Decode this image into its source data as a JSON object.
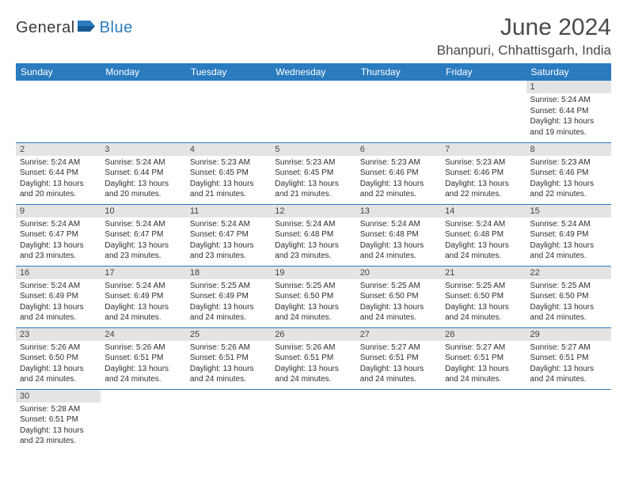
{
  "logo": {
    "part1": "General",
    "part2": "Blue"
  },
  "title": "June 2024",
  "location": "Bhanpuri, Chhattisgarh, India",
  "colors": {
    "brand_blue": "#2b7bbf",
    "header_gray": "#e4e4e4",
    "text": "#333333"
  },
  "weekdays": [
    "Sunday",
    "Monday",
    "Tuesday",
    "Wednesday",
    "Thursday",
    "Friday",
    "Saturday"
  ],
  "weeks": [
    [
      null,
      null,
      null,
      null,
      null,
      null,
      {
        "n": "1",
        "sr": "Sunrise: 5:24 AM",
        "ss": "Sunset: 6:44 PM",
        "d1": "Daylight: 13 hours",
        "d2": "and 19 minutes."
      }
    ],
    [
      {
        "n": "2",
        "sr": "Sunrise: 5:24 AM",
        "ss": "Sunset: 6:44 PM",
        "d1": "Daylight: 13 hours",
        "d2": "and 20 minutes."
      },
      {
        "n": "3",
        "sr": "Sunrise: 5:24 AM",
        "ss": "Sunset: 6:44 PM",
        "d1": "Daylight: 13 hours",
        "d2": "and 20 minutes."
      },
      {
        "n": "4",
        "sr": "Sunrise: 5:23 AM",
        "ss": "Sunset: 6:45 PM",
        "d1": "Daylight: 13 hours",
        "d2": "and 21 minutes."
      },
      {
        "n": "5",
        "sr": "Sunrise: 5:23 AM",
        "ss": "Sunset: 6:45 PM",
        "d1": "Daylight: 13 hours",
        "d2": "and 21 minutes."
      },
      {
        "n": "6",
        "sr": "Sunrise: 5:23 AM",
        "ss": "Sunset: 6:46 PM",
        "d1": "Daylight: 13 hours",
        "d2": "and 22 minutes."
      },
      {
        "n": "7",
        "sr": "Sunrise: 5:23 AM",
        "ss": "Sunset: 6:46 PM",
        "d1": "Daylight: 13 hours",
        "d2": "and 22 minutes."
      },
      {
        "n": "8",
        "sr": "Sunrise: 5:23 AM",
        "ss": "Sunset: 6:46 PM",
        "d1": "Daylight: 13 hours",
        "d2": "and 22 minutes."
      }
    ],
    [
      {
        "n": "9",
        "sr": "Sunrise: 5:24 AM",
        "ss": "Sunset: 6:47 PM",
        "d1": "Daylight: 13 hours",
        "d2": "and 23 minutes."
      },
      {
        "n": "10",
        "sr": "Sunrise: 5:24 AM",
        "ss": "Sunset: 6:47 PM",
        "d1": "Daylight: 13 hours",
        "d2": "and 23 minutes."
      },
      {
        "n": "11",
        "sr": "Sunrise: 5:24 AM",
        "ss": "Sunset: 6:47 PM",
        "d1": "Daylight: 13 hours",
        "d2": "and 23 minutes."
      },
      {
        "n": "12",
        "sr": "Sunrise: 5:24 AM",
        "ss": "Sunset: 6:48 PM",
        "d1": "Daylight: 13 hours",
        "d2": "and 23 minutes."
      },
      {
        "n": "13",
        "sr": "Sunrise: 5:24 AM",
        "ss": "Sunset: 6:48 PM",
        "d1": "Daylight: 13 hours",
        "d2": "and 24 minutes."
      },
      {
        "n": "14",
        "sr": "Sunrise: 5:24 AM",
        "ss": "Sunset: 6:48 PM",
        "d1": "Daylight: 13 hours",
        "d2": "and 24 minutes."
      },
      {
        "n": "15",
        "sr": "Sunrise: 5:24 AM",
        "ss": "Sunset: 6:49 PM",
        "d1": "Daylight: 13 hours",
        "d2": "and 24 minutes."
      }
    ],
    [
      {
        "n": "16",
        "sr": "Sunrise: 5:24 AM",
        "ss": "Sunset: 6:49 PM",
        "d1": "Daylight: 13 hours",
        "d2": "and 24 minutes."
      },
      {
        "n": "17",
        "sr": "Sunrise: 5:24 AM",
        "ss": "Sunset: 6:49 PM",
        "d1": "Daylight: 13 hours",
        "d2": "and 24 minutes."
      },
      {
        "n": "18",
        "sr": "Sunrise: 5:25 AM",
        "ss": "Sunset: 6:49 PM",
        "d1": "Daylight: 13 hours",
        "d2": "and 24 minutes."
      },
      {
        "n": "19",
        "sr": "Sunrise: 5:25 AM",
        "ss": "Sunset: 6:50 PM",
        "d1": "Daylight: 13 hours",
        "d2": "and 24 minutes."
      },
      {
        "n": "20",
        "sr": "Sunrise: 5:25 AM",
        "ss": "Sunset: 6:50 PM",
        "d1": "Daylight: 13 hours",
        "d2": "and 24 minutes."
      },
      {
        "n": "21",
        "sr": "Sunrise: 5:25 AM",
        "ss": "Sunset: 6:50 PM",
        "d1": "Daylight: 13 hours",
        "d2": "and 24 minutes."
      },
      {
        "n": "22",
        "sr": "Sunrise: 5:25 AM",
        "ss": "Sunset: 6:50 PM",
        "d1": "Daylight: 13 hours",
        "d2": "and 24 minutes."
      }
    ],
    [
      {
        "n": "23",
        "sr": "Sunrise: 5:26 AM",
        "ss": "Sunset: 6:50 PM",
        "d1": "Daylight: 13 hours",
        "d2": "and 24 minutes."
      },
      {
        "n": "24",
        "sr": "Sunrise: 5:26 AM",
        "ss": "Sunset: 6:51 PM",
        "d1": "Daylight: 13 hours",
        "d2": "and 24 minutes."
      },
      {
        "n": "25",
        "sr": "Sunrise: 5:26 AM",
        "ss": "Sunset: 6:51 PM",
        "d1": "Daylight: 13 hours",
        "d2": "and 24 minutes."
      },
      {
        "n": "26",
        "sr": "Sunrise: 5:26 AM",
        "ss": "Sunset: 6:51 PM",
        "d1": "Daylight: 13 hours",
        "d2": "and 24 minutes."
      },
      {
        "n": "27",
        "sr": "Sunrise: 5:27 AM",
        "ss": "Sunset: 6:51 PM",
        "d1": "Daylight: 13 hours",
        "d2": "and 24 minutes."
      },
      {
        "n": "28",
        "sr": "Sunrise: 5:27 AM",
        "ss": "Sunset: 6:51 PM",
        "d1": "Daylight: 13 hours",
        "d2": "and 24 minutes."
      },
      {
        "n": "29",
        "sr": "Sunrise: 5:27 AM",
        "ss": "Sunset: 6:51 PM",
        "d1": "Daylight: 13 hours",
        "d2": "and 24 minutes."
      }
    ],
    [
      {
        "n": "30",
        "sr": "Sunrise: 5:28 AM",
        "ss": "Sunset: 6:51 PM",
        "d1": "Daylight: 13 hours",
        "d2": "and 23 minutes."
      },
      null,
      null,
      null,
      null,
      null,
      null
    ]
  ]
}
